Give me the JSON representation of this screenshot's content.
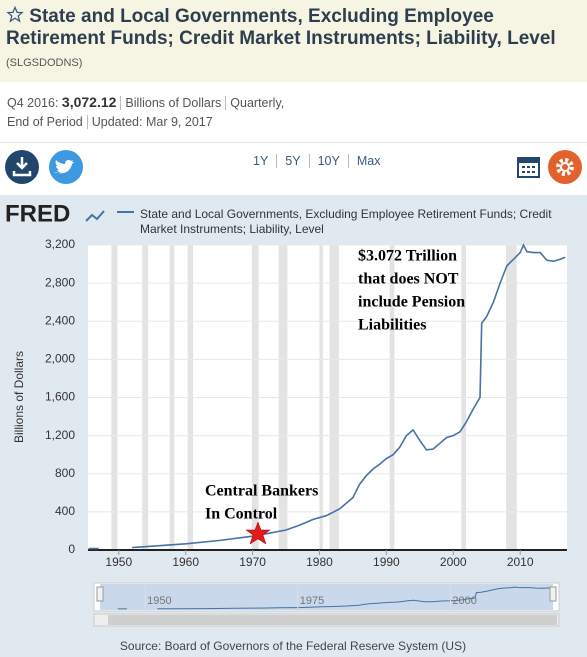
{
  "header": {
    "title": "State and Local Governments, Excluding Employee Retirement Funds; Credit Market Instruments; Liability, Level",
    "series_id": "(SLGSDODNS)"
  },
  "info": {
    "period": "Q4 2016:",
    "value": "3,072.12",
    "units": "Billions of Dollars",
    "frequency": "Quarterly,",
    "end": "End of Period",
    "updated_label": "Updated:",
    "updated": "Mar 9, 2017"
  },
  "range_buttons": [
    "1Y",
    "5Y",
    "10Y",
    "Max"
  ],
  "chart_data": {
    "type": "line",
    "logo": "FRED",
    "ylabel": "Billions of Dollars",
    "x": [
      1945.5,
      1947,
      1949,
      1952,
      1955,
      1960,
      1965,
      1970,
      1972,
      1975,
      1977,
      1979,
      1981,
      1983,
      1985,
      1986,
      1987,
      1988,
      1989,
      1990,
      1991,
      1992,
      1993,
      1994,
      1995,
      1996,
      1997,
      1998,
      1999,
      2000,
      2001,
      2002,
      2003,
      2004,
      2004.25,
      2005,
      2006,
      2007,
      2008,
      2009,
      2010,
      2010.5,
      2011,
      2012,
      2013,
      2014,
      2015,
      2016,
      2016.75
    ],
    "series": [
      {
        "name": "State and Local Governments, Excluding Employee Retirement Funds; Credit Market Instruments; Liability, Level",
        "color": "#4572a7",
        "values": [
          15,
          15,
          null,
          25,
          40,
          65,
          100,
          145,
          170,
          210,
          260,
          320,
          360,
          430,
          550,
          690,
          780,
          850,
          900,
          960,
          1000,
          1080,
          1200,
          1260,
          1150,
          1050,
          1060,
          1120,
          1180,
          1200,
          1240,
          1350,
          1480,
          1600,
          2380,
          2450,
          2600,
          2800,
          2980,
          3050,
          3120,
          3200,
          3130,
          3120,
          3120,
          3040,
          3030,
          3050,
          3072.12
        ]
      }
    ],
    "xlim": [
      1945.4,
      2017.0
    ],
    "ylim": [
      0,
      3200
    ],
    "xticks": [
      1950,
      1960,
      1970,
      1980,
      1990,
      2000,
      2010
    ],
    "yticks": [
      0,
      400,
      800,
      {
        "value": 1200,
        "label": "1,200"
      },
      {
        "value": 1600,
        "label": "1,600"
      },
      {
        "value": 2000,
        "label": "2,000"
      },
      {
        "value": 2400,
        "label": "2,400"
      },
      {
        "value": 2800,
        "label": "2,800"
      },
      {
        "value": 3200,
        "label": "3,200"
      }
    ],
    "grid": true,
    "recessions": [
      [
        1948.9,
        1949.8
      ],
      [
        1953.5,
        1954.4
      ],
      [
        1957.6,
        1958.3
      ],
      [
        1960.3,
        1961.1
      ],
      [
        1969.9,
        1970.9
      ],
      [
        1973.9,
        1975.2
      ],
      [
        1980.0,
        1980.5
      ],
      [
        1981.5,
        1982.9
      ],
      [
        1990.5,
        1991.2
      ],
      [
        2001.2,
        2001.9
      ],
      [
        2007.9,
        2009.5
      ]
    ],
    "annotations": [
      {
        "lines": [
          "$3.072 Trillion",
          "that does NOT",
          "include Pension",
          "Liabilities"
        ]
      },
      {
        "lines": [
          "Central Bankers",
          "In Control"
        ]
      }
    ],
    "navigator": {
      "xlim": [
        1942.6,
        2016.8
      ],
      "xticks": [
        1950,
        1975,
        2000
      ]
    },
    "source": "Source: Board of Governors of the Federal Reserve System (US)"
  }
}
